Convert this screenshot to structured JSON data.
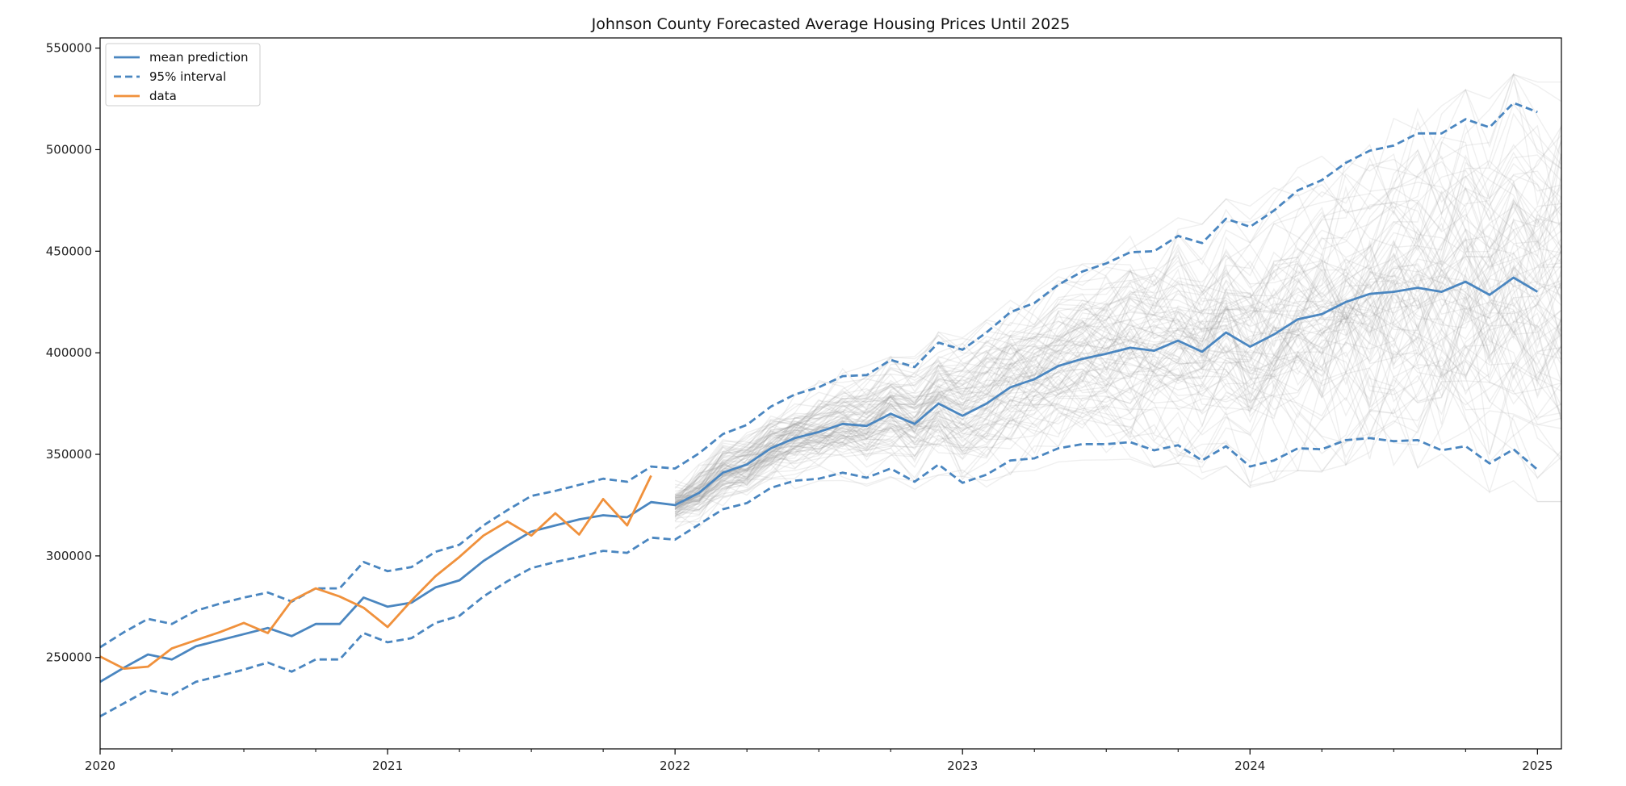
{
  "chart_data": {
    "type": "line",
    "title": "Johnson County Forecasted Average Housing Prices Until 2025",
    "xlabel": "",
    "ylabel": "",
    "x_start": "2020-01",
    "x_end": "2025-01",
    "xlim": [
      "2020-01",
      "2025-02"
    ],
    "ylim": [
      205000,
      555000
    ],
    "x_ticks": [
      "2020",
      "2021",
      "2022",
      "2023",
      "2024",
      "2025"
    ],
    "y_ticks": [
      250000,
      300000,
      350000,
      400000,
      450000,
      500000,
      550000
    ],
    "legend_position": "top-left",
    "grid": false,
    "colors": {
      "mean": "#4a86c0",
      "interval": "#4a86c0",
      "data": "#f0913c",
      "samples": "#9a9a9a"
    },
    "series": [
      {
        "name": "mean prediction",
        "style": "solid",
        "values": [
          238000,
          245000,
          251500,
          249000,
          255500,
          258500,
          261500,
          264500,
          260500,
          266500,
          266500,
          279500,
          275000,
          277000,
          284500,
          288000,
          297500,
          305000,
          312000,
          315000,
          318000,
          320000,
          319000,
          326500,
          325000,
          331000,
          341000,
          345000,
          353000,
          358000,
          361000,
          365000,
          364000,
          370000,
          365000,
          375000,
          369000,
          375000,
          383000,
          387000,
          393500,
          397000,
          399500,
          402500,
          401000,
          406000,
          400500,
          410000,
          403000,
          409000,
          416500,
          419000,
          425000,
          429000,
          430000,
          432000,
          430000,
          435000,
          428500,
          437000,
          430000
        ]
      },
      {
        "name": "95% interval",
        "style": "dashed",
        "values": [
          255000,
          262500,
          269000,
          266500,
          273000,
          276500,
          279500,
          282000,
          277500,
          284000,
          284000,
          297000,
          292500,
          294500,
          302000,
          305500,
          315000,
          322500,
          329500,
          332000,
          335000,
          338000,
          336500,
          344000,
          343000,
          350500,
          360000,
          364500,
          373500,
          379500,
          383000,
          388500,
          389000,
          396500,
          393000,
          405000,
          401500,
          410000,
          420000,
          424500,
          433500,
          440000,
          444000,
          449500,
          450000,
          457500,
          454000,
          466000,
          462000,
          470000,
          480000,
          485000,
          493500,
          499500,
          502000,
          508000,
          508000,
          515000,
          511000,
          523000,
          518500
        ]
      },
      {
        "style": "dashed",
        "values": [
          221000,
          227500,
          234000,
          231500,
          238000,
          241000,
          244000,
          247500,
          243000,
          249000,
          249000,
          262000,
          257500,
          259500,
          267000,
          270500,
          280000,
          287500,
          294000,
          297000,
          299500,
          302500,
          301500,
          309000,
          308000,
          315500,
          323000,
          326000,
          333500,
          337000,
          338000,
          341000,
          338500,
          343000,
          336500,
          345000,
          336000,
          340000,
          347000,
          348000,
          353000,
          355000,
          355000,
          356000,
          352000,
          354500,
          347000,
          354000,
          344000,
          347000,
          353000,
          352500,
          357000,
          358000,
          356500,
          357000,
          352000,
          354000,
          345500,
          352500,
          342500
        ]
      },
      {
        "name": "data",
        "style": "solid",
        "values": [
          250500,
          244500,
          245500,
          254500,
          258500,
          262500,
          267000,
          262000,
          278000,
          284000,
          280000,
          274500,
          265000,
          278000,
          290000,
          299500,
          310000,
          317000,
          310000,
          321000,
          310500,
          328000,
          315000,
          339500
        ]
      }
    ],
    "samples": {
      "count": 100,
      "start": "2022-01",
      "end": "2025-02",
      "description_center_series": "mean prediction"
    }
  }
}
